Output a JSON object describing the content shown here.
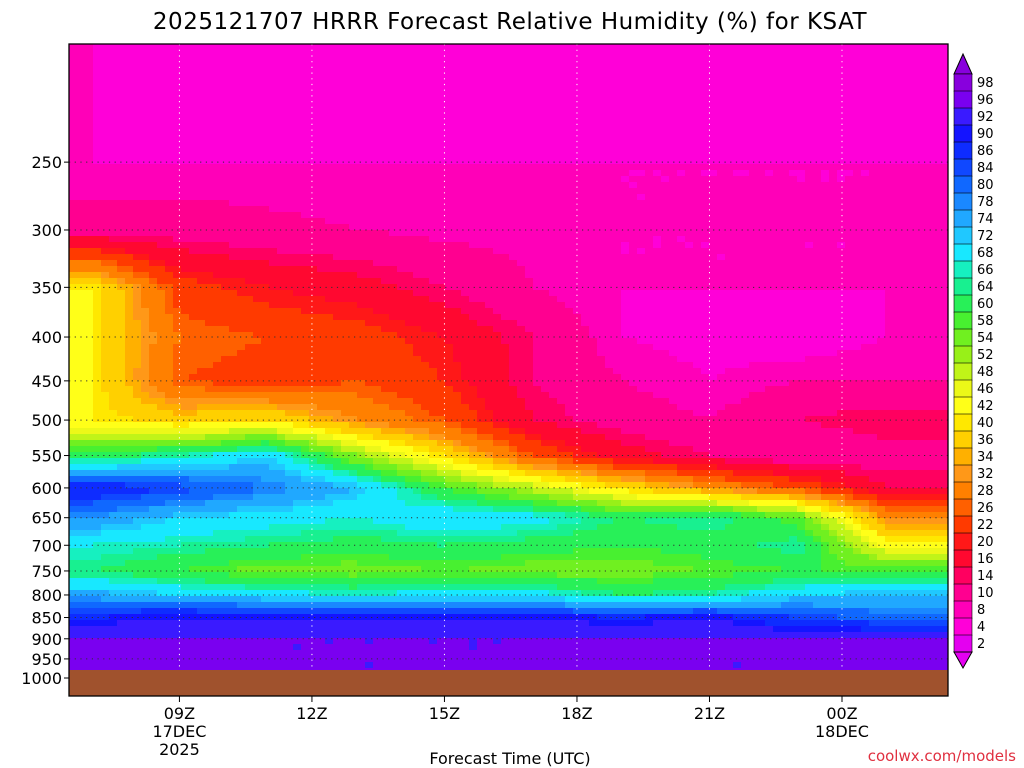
{
  "title": "2025121707 HRRR Forecast Relative Humidity (%) for KSAT",
  "xlabel": "Forecast Time (UTC)",
  "credit": "coolwx.com/models",
  "chart_data": {
    "type": "heatmap",
    "title": "2025121707 HRRR Forecast Relative Humidity (%) for KSAT",
    "xlabel": "Forecast Time (UTC)",
    "ylabel": "",
    "x_hours": [
      7,
      9,
      11,
      13,
      15,
      17,
      19,
      21,
      23,
      25
    ],
    "y_levels": [
      200,
      250,
      300,
      350,
      400,
      450,
      500,
      550,
      600,
      650,
      700,
      750,
      800,
      850,
      900,
      950,
      975
    ],
    "values": [
      [
        8,
        6,
        6,
        8,
        6,
        7,
        6,
        6,
        8,
        6
      ],
      [
        8,
        8,
        8,
        8,
        8,
        8,
        8,
        8,
        8,
        8
      ],
      [
        12,
        12,
        11,
        10,
        9,
        9,
        8,
        8,
        8,
        8
      ],
      [
        42,
        24,
        20,
        18,
        14,
        10,
        8,
        8,
        8,
        8
      ],
      [
        42,
        28,
        26,
        24,
        20,
        14,
        8,
        7,
        6,
        8
      ],
      [
        42,
        26,
        24,
        26,
        22,
        14,
        10,
        8,
        10,
        10
      ],
      [
        42,
        38,
        40,
        32,
        26,
        16,
        12,
        10,
        14,
        16
      ],
      [
        62,
        66,
        72,
        54,
        40,
        26,
        18,
        14,
        10,
        12
      ],
      [
        90,
        86,
        80,
        74,
        60,
        50,
        40,
        32,
        26,
        16
      ],
      [
        78,
        72,
        70,
        68,
        72,
        70,
        64,
        66,
        58,
        32
      ],
      [
        68,
        66,
        64,
        62,
        64,
        62,
        60,
        62,
        66,
        44
      ],
      [
        64,
        60,
        56,
        56,
        58,
        56,
        56,
        58,
        60,
        60
      ],
      [
        76,
        72,
        70,
        68,
        70,
        70,
        64,
        66,
        72,
        74
      ],
      [
        90,
        92,
        92,
        92,
        92,
        92,
        90,
        92,
        86,
        82
      ],
      [
        96,
        96,
        96,
        96,
        96,
        96,
        96,
        96,
        96,
        96
      ],
      [
        96,
        97,
        96,
        96,
        96,
        96,
        97,
        96,
        96,
        96
      ],
      [
        96,
        96,
        96,
        96,
        96,
        96,
        96,
        96,
        96,
        96
      ]
    ],
    "y_ticks": [
      250,
      300,
      350,
      400,
      450,
      500,
      550,
      600,
      650,
      700,
      750,
      800,
      850,
      900,
      950,
      1000
    ],
    "x_ticks": [
      {
        "hour": 9,
        "label": "09Z",
        "date": "17DEC",
        "year": "2025"
      },
      {
        "hour": 12,
        "label": "12Z",
        "date": "",
        "year": ""
      },
      {
        "hour": 15,
        "label": "15Z",
        "date": "",
        "year": ""
      },
      {
        "hour": 18,
        "label": "18Z",
        "date": "",
        "year": ""
      },
      {
        "hour": 21,
        "label": "21Z",
        "date": "",
        "year": ""
      },
      {
        "hour": 24,
        "label": "00Z",
        "date": "18DEC",
        "year": ""
      }
    ],
    "colorbar": {
      "labels": [
        98,
        96,
        92,
        90,
        86,
        84,
        80,
        78,
        74,
        72,
        68,
        66,
        64,
        60,
        58,
        54,
        52,
        48,
        46,
        42,
        40,
        36,
        34,
        32,
        28,
        26,
        22,
        20,
        16,
        14,
        10,
        8,
        4,
        2
      ],
      "colors": [
        "#8800dd",
        "#7a00f0",
        "#3a1aff",
        "#1414ff",
        "#0e2cff",
        "#1048ff",
        "#1068ff",
        "#1a88ff",
        "#20a8ff",
        "#20c8ff",
        "#18e8ff",
        "#16f0c0",
        "#18f090",
        "#28f058",
        "#48f030",
        "#70f020",
        "#98f018",
        "#c0f418",
        "#ecf818",
        "#ffff18",
        "#ffe800",
        "#ffd000",
        "#ffb000",
        "#ff9818",
        "#ff8000",
        "#ff6000",
        "#ff3a00",
        "#ff1818",
        "#ff0830",
        "#ff0060",
        "#ff0090",
        "#ff00b8",
        "#ff00d8",
        "#e400f0"
      ]
    },
    "ground_color": "#a0522d"
  }
}
